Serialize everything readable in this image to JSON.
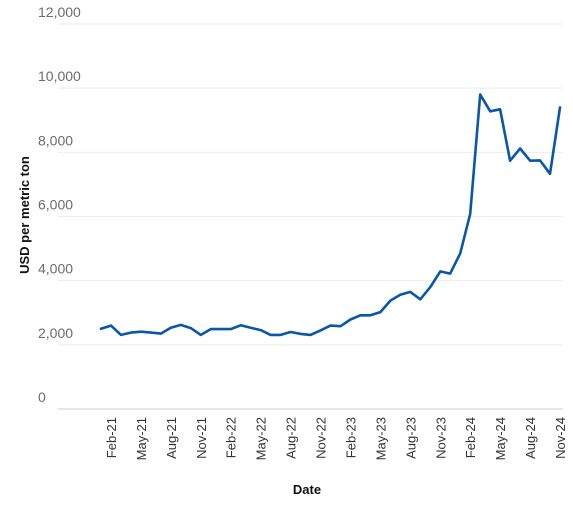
{
  "chart_data": {
    "type": "line",
    "xlabel": "Date",
    "ylabel": "USD per metric ton",
    "ylim": [
      0,
      12000
    ],
    "y_ticks": [
      "0",
      "2,000",
      "4,000",
      "6,000",
      "8,000",
      "10,000",
      "12,000"
    ],
    "y_tick_values": [
      0,
      2000,
      4000,
      6000,
      8000,
      10000,
      12000
    ],
    "x_ticks": [
      "Feb-21",
      "May-21",
      "Aug-21",
      "Nov-21",
      "Feb-22",
      "May-22",
      "Aug-22",
      "Nov-22",
      "Feb-23",
      "May-23",
      "Aug-23",
      "Nov-23",
      "Feb-24",
      "May-24",
      "Aug-24",
      "Nov-24"
    ],
    "grid": "horizontal",
    "legend": "none",
    "line_color": "#0a56a8",
    "gridline_color": "#ececec",
    "axis_color": "#cfcfcf",
    "series": [
      {
        "x": [
          "Jan-21",
          "Feb-21",
          "Mar-21",
          "Apr-21",
          "May-21",
          "Jun-21",
          "Jul-21",
          "Aug-21",
          "Sep-21",
          "Oct-21",
          "Nov-21",
          "Dec-21",
          "Jan-22",
          "Feb-22",
          "Mar-22",
          "Apr-22",
          "May-22",
          "Jun-22",
          "Jul-22",
          "Aug-22",
          "Sep-22",
          "Oct-22",
          "Nov-22",
          "Dec-22",
          "Jan-23",
          "Feb-23",
          "Mar-23",
          "Apr-23",
          "May-23",
          "Jun-23",
          "Jul-23",
          "Aug-23",
          "Sep-23",
          "Oct-23",
          "Nov-23",
          "Dec-23",
          "Jan-24",
          "Feb-24",
          "Mar-24",
          "Apr-24",
          "May-24",
          "Jun-24",
          "Jul-24",
          "Aug-24",
          "Sep-24",
          "Oct-24",
          "Nov-24"
        ],
        "values": [
          2500,
          2600,
          2310,
          2380,
          2410,
          2380,
          2350,
          2530,
          2620,
          2520,
          2310,
          2490,
          2490,
          2490,
          2610,
          2530,
          2460,
          2310,
          2310,
          2400,
          2340,
          2310,
          2450,
          2600,
          2580,
          2790,
          2920,
          2920,
          3020,
          3380,
          3560,
          3650,
          3420,
          3800,
          4290,
          4220,
          4850,
          6080,
          9800,
          9280,
          9340,
          7740,
          8120,
          7740,
          7750,
          7330,
          9400
        ]
      }
    ]
  }
}
